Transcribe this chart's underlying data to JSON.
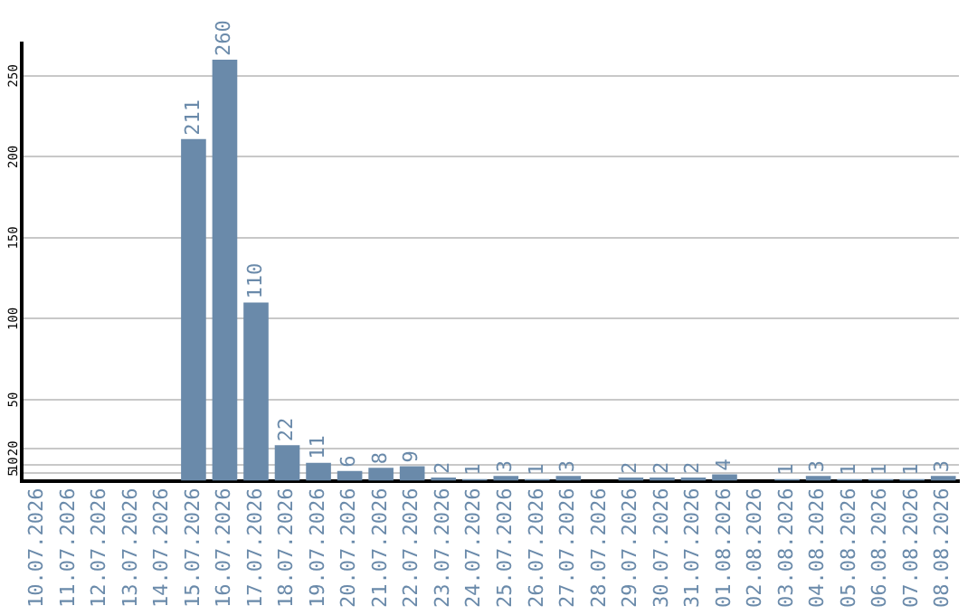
{
  "chart_data": {
    "type": "bar",
    "categories": [
      "10.07.2026",
      "11.07.2026",
      "12.07.2026",
      "13.07.2026",
      "14.07.2026",
      "15.07.2026",
      "16.07.2026",
      "17.07.2026",
      "18.07.2026",
      "19.07.2026",
      "20.07.2026",
      "21.07.2026",
      "22.07.2026",
      "23.07.2026",
      "24.07.2026",
      "25.07.2026",
      "26.07.2026",
      "27.07.2026",
      "28.07.2026",
      "29.07.2026",
      "30.07.2026",
      "31.07.2026",
      "01.08.2026",
      "02.08.2026",
      "03.08.2026",
      "04.08.2026",
      "05.08.2026",
      "06.08.2026",
      "07.08.2026",
      "08.08.2026"
    ],
    "values": [
      null,
      null,
      null,
      null,
      null,
      211,
      260,
      110,
      22,
      11,
      6,
      8,
      9,
      2,
      1,
      3,
      1,
      3,
      null,
      2,
      2,
      2,
      4,
      null,
      1,
      3,
      1,
      1,
      1,
      3
    ],
    "color": "#6a8aaa",
    "ylim": [
      0,
      270
    ],
    "yticks": [
      5,
      10,
      20,
      50,
      100,
      150,
      200,
      250
    ],
    "grid": "y",
    "data_labels": true,
    "legend": false
  }
}
